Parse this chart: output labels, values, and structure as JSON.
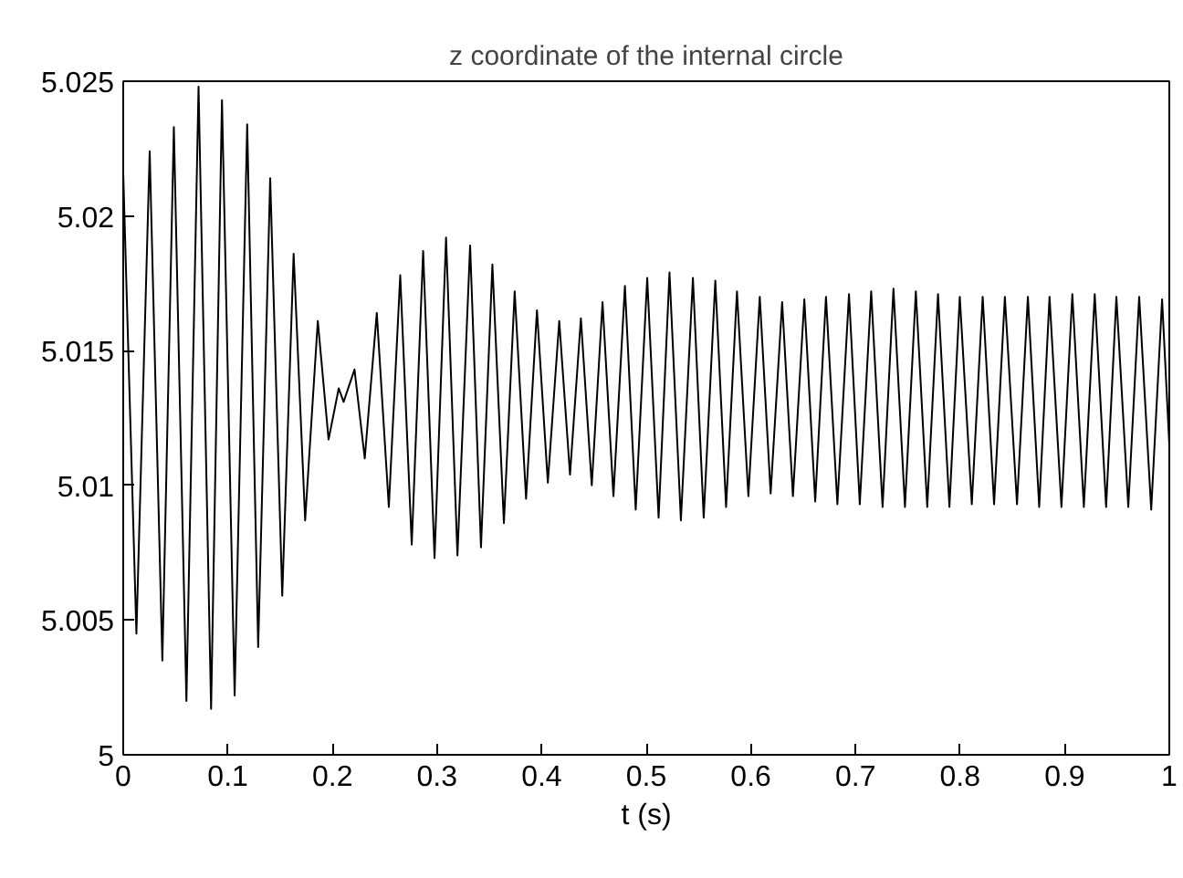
{
  "chart_data": {
    "type": "line",
    "title": "z coordinate of the internal circle",
    "xlabel": "t (s)",
    "x": [
      0,
      0.0126,
      0.0253,
      0.0374,
      0.0484,
      0.0604,
      0.072,
      0.084,
      0.0944,
      0.1065,
      0.1185,
      0.129,
      0.1405,
      0.152,
      0.1629,
      0.1739,
      0.186,
      0.1963,
      0.206,
      0.2107,
      0.2211,
      0.2309,
      0.2424,
      0.2539,
      0.2648,
      0.2758,
      0.2867,
      0.2976,
      0.3086,
      0.3195,
      0.3316,
      0.342,
      0.3529,
      0.3639,
      0.3742,
      0.3851,
      0.3955,
      0.4059,
      0.4168,
      0.4271,
      0.4375,
      0.4479,
      0.4582,
      0.4686,
      0.4796,
      0.4899,
      0.5009,
      0.5118,
      0.5222,
      0.5331,
      0.5446,
      0.5549,
      0.566,
      0.5763,
      0.5867,
      0.5976,
      0.6085,
      0.6189,
      0.6299,
      0.6402,
      0.6511,
      0.6615,
      0.6718,
      0.6827,
      0.6938,
      0.7041,
      0.715,
      0.7259,
      0.7363,
      0.7473,
      0.7577,
      0.7686,
      0.7789,
      0.7898,
      0.7997,
      0.8112,
      0.8216,
      0.8325,
      0.8428,
      0.8544,
      0.8648,
      0.8756,
      0.8855,
      0.8969,
      0.9073,
      0.9183,
      0.9287,
      0.9396,
      0.9494,
      0.9608,
      0.9712,
      0.9827,
      0.9931,
      1
    ],
    "series": [
      {
        "color": "#000000",
        "values": [
          5.0216,
          5.0045,
          5.0224,
          5.0035,
          5.0233,
          5.002,
          5.0248,
          5.0017,
          5.0243,
          5.0022,
          5.0234,
          5.004,
          5.0214,
          5.0059,
          5.0186,
          5.0087,
          5.0161,
          5.0117,
          5.0136,
          5.0131,
          5.0143,
          5.011,
          5.0164,
          5.0092,
          5.0178,
          5.0078,
          5.0187,
          5.0073,
          5.0192,
          5.0074,
          5.0189,
          5.0077,
          5.0182,
          5.0086,
          5.0172,
          5.0095,
          5.0165,
          5.0101,
          5.0161,
          5.0104,
          5.0162,
          5.01,
          5.0168,
          5.0096,
          5.0174,
          5.0091,
          5.0177,
          5.0088,
          5.0179,
          5.0087,
          5.0177,
          5.0088,
          5.0176,
          5.0092,
          5.0172,
          5.0096,
          5.017,
          5.0097,
          5.0168,
          5.0096,
          5.0169,
          5.0094,
          5.017,
          5.0093,
          5.0171,
          5.0093,
          5.0172,
          5.0092,
          5.0173,
          5.0092,
          5.0172,
          5.0092,
          5.0171,
          5.0092,
          5.017,
          5.0093,
          5.017,
          5.0093,
          5.017,
          5.0093,
          5.017,
          5.0092,
          5.017,
          5.0092,
          5.0171,
          5.0092,
          5.0171,
          5.0092,
          5.017,
          5.0092,
          5.017,
          5.0091,
          5.0169,
          5.0115
        ]
      }
    ],
    "xlim": [
      0,
      1
    ],
    "xticks": [
      0,
      0.1,
      0.2,
      0.3,
      0.4,
      0.5,
      0.6,
      0.7,
      0.8,
      0.9,
      1
    ],
    "ylim": [
      5,
      5.025
    ],
    "yticks": [
      5,
      5.005,
      5.01,
      5.015,
      5.02,
      5.025
    ],
    "grid": false,
    "marker": "none",
    "line_style": "solid"
  }
}
